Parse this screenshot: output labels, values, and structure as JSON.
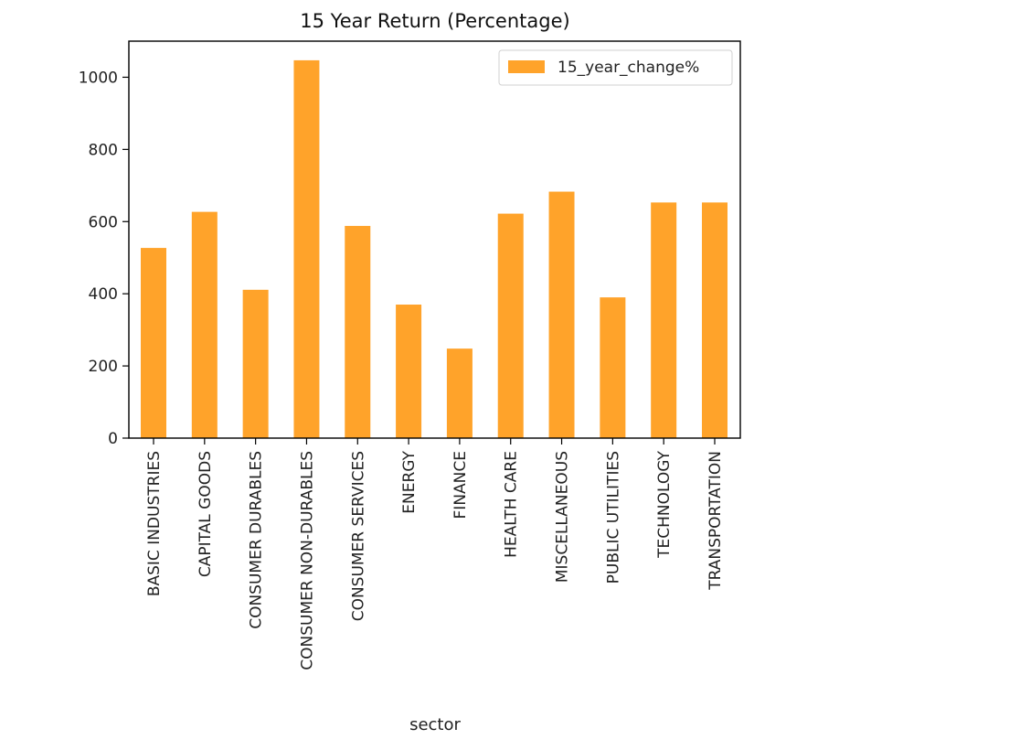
{
  "chart_data": {
    "type": "bar",
    "title": "15 Year Return (Percentage)",
    "xlabel": "sector",
    "ylabel": "",
    "categories": [
      "BASIC INDUSTRIES",
      "CAPITAL GOODS",
      "CONSUMER DURABLES",
      "CONSUMER NON-DURABLES",
      "CONSUMER SERVICES",
      "ENERGY",
      "FINANCE",
      "HEALTH CARE",
      "MISCELLANEOUS",
      "PUBLIC UTILITIES",
      "TECHNOLOGY",
      "TRANSPORTATION"
    ],
    "series": [
      {
        "name": "15_year_change%",
        "values": [
          527,
          627,
          411,
          1047,
          588,
          370,
          248,
          622,
          683,
          390,
          653,
          653
        ],
        "color": "#ffa32a"
      }
    ],
    "ylim": [
      0,
      1100
    ],
    "yticks": [
      0,
      200,
      400,
      600,
      800,
      1000
    ],
    "legend_position": "top-right",
    "grid": false
  }
}
